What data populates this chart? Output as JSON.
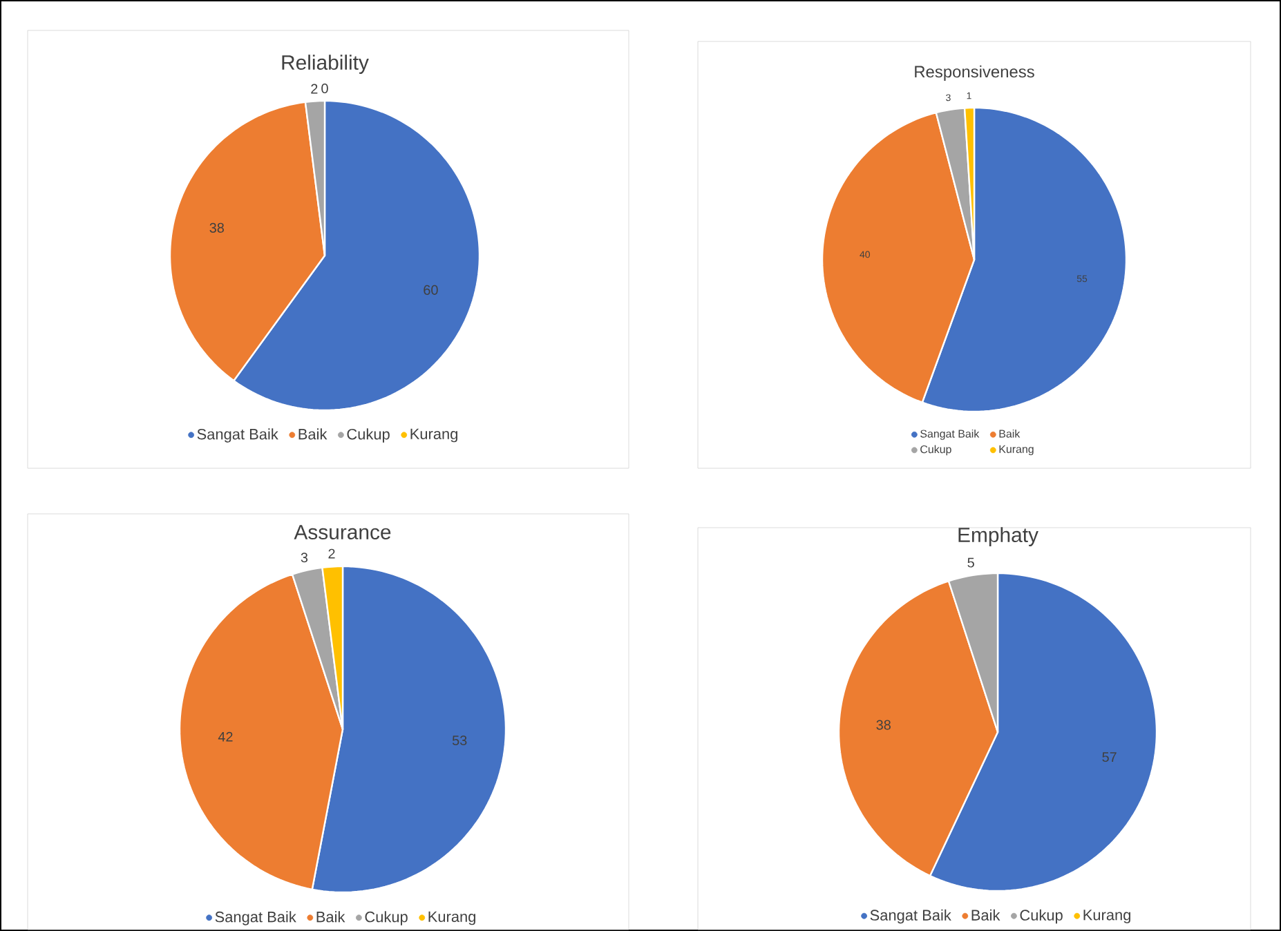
{
  "chart_data": [
    {
      "type": "pie",
      "title": "Reliability",
      "categories": [
        "Sangat Baik",
        "Baik",
        "Cukup",
        "Kurang"
      ],
      "values": [
        60,
        38,
        2,
        0
      ],
      "colors": [
        "#4472c4",
        "#ed7d31",
        "#a5a5a5",
        "#ffc000"
      ],
      "value_labels": [
        "60",
        "38",
        "2",
        "0"
      ],
      "legend": "bottom"
    },
    {
      "type": "pie",
      "title": "Responsiveness",
      "categories": [
        "Sangat Baik",
        "Baik",
        "Cukup",
        "Kurang"
      ],
      "values": [
        55,
        40,
        3,
        1
      ],
      "colors": [
        "#4472c4",
        "#ed7d31",
        "#a5a5a5",
        "#ffc000"
      ],
      "value_labels": [
        "55",
        "40",
        "3",
        "1"
      ],
      "legend": "bottom"
    },
    {
      "type": "pie",
      "title": "Assurance",
      "categories": [
        "Sangat Baik",
        "Baik",
        "Cukup",
        "Kurang"
      ],
      "values": [
        53,
        42,
        3,
        2
      ],
      "colors": [
        "#4472c4",
        "#ed7d31",
        "#a5a5a5",
        "#ffc000"
      ],
      "value_labels": [
        "53",
        "42",
        "3",
        "2"
      ],
      "legend": "bottom"
    },
    {
      "type": "pie",
      "title": "Emphaty",
      "categories": [
        "Sangat Baik",
        "Baik",
        "Cukup",
        "Kurang"
      ],
      "values": [
        57,
        38,
        5,
        0
      ],
      "colors": [
        "#4472c4",
        "#ed7d31",
        "#a5a5a5",
        "#ffc000"
      ],
      "value_labels": [
        "57",
        "38",
        "5",
        null
      ],
      "legend": "bottom"
    }
  ]
}
